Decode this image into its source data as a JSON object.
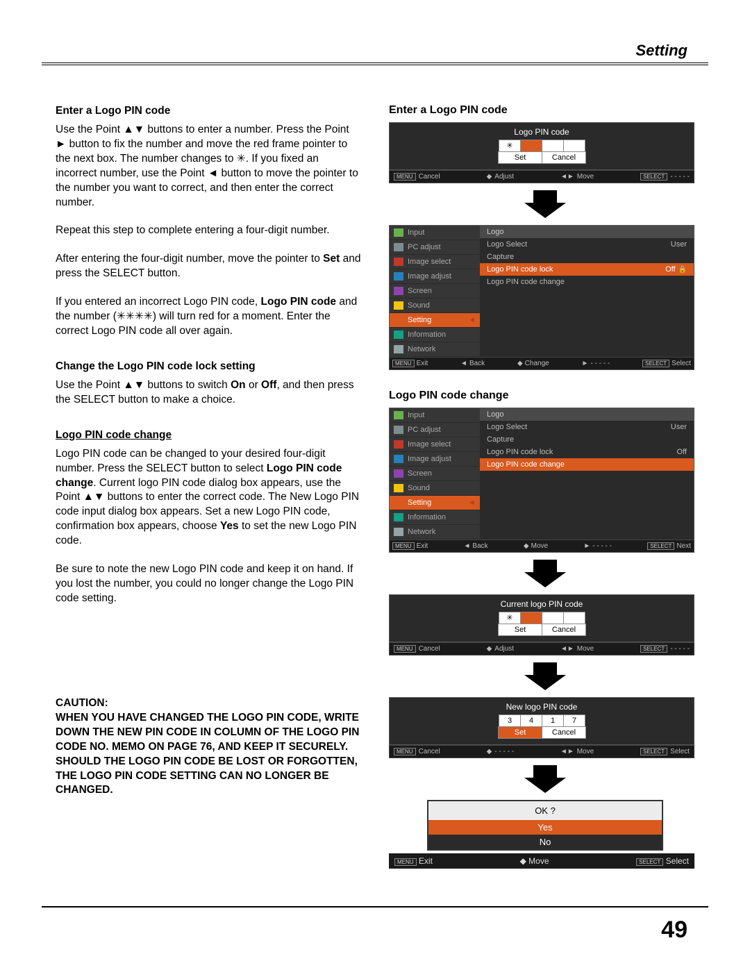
{
  "header": {
    "title": "Setting"
  },
  "page_number": "49",
  "left": {
    "h1": "Enter a Logo PIN code",
    "p1": "Use the Point ▲▼ buttons to enter a number. Press the Point ► button to fix the number and move the red frame pointer to the next box. The number changes to ✳. If you fixed an incorrect number, use the Point ◄ button to move the pointer to the number you want to correct, and then enter the correct number.",
    "p2": "Repeat this step to complete entering a four-digit number.",
    "p3a": "After entering the four-digit number, move the pointer to ",
    "p3b": "Set",
    "p3c": " and press the SELECT button.",
    "p4a": "If you entered an incorrect Logo PIN code, ",
    "p4b": "Logo PIN code",
    "p4c": " and the number (✳✳✳✳) will turn red for a moment. Enter the correct Logo PIN code all over again.",
    "h2": "Change the Logo PIN code lock setting",
    "p5a": "Use the Point ▲▼ buttons to switch ",
    "p5b": "On",
    "p5c": " or ",
    "p5d": "Off",
    "p5e": ", and then press the SELECT button to make a choice.",
    "h3": "Logo PIN code change",
    "p6a": "Logo PIN code can be changed to your desired four-digit number. Press the SELECT button to select ",
    "p6b": "Logo PIN code change",
    "p6c": ". Current logo PIN code dialog box appears, use the Point ▲▼ buttons to enter the correct code. The New Logo PIN code input dialog box appears. Set a new Logo PIN code, confirmation box appears, choose ",
    "p6d": "Yes",
    "p6e": " to set the new Logo PIN code.",
    "p7": "Be sure to note the new Logo PIN code and keep it on hand. If you lost the number, you could no longer change the Logo PIN code setting.",
    "caution_label": "CAUTION:",
    "caution_body": "WHEN YOU HAVE CHANGED THE LOGO PIN CODE, WRITE DOWN THE NEW PIN CODE IN COLUMN OF THE LOGO PIN CODE NO. MEMO ON PAGE 76, AND KEEP IT SECURELY. SHOULD THE LOGO PIN CODE BE LOST OR FORGOTTEN, THE LOGO PIN CODE SETTING CAN NO LONGER BE CHANGED."
  },
  "right": {
    "h1": "Enter a Logo PIN code",
    "h2": "Logo PIN code change",
    "pin1": {
      "title": "Logo PIN code",
      "cells": [
        "✳",
        "",
        "",
        ""
      ],
      "hl_index": 1,
      "set": "Set",
      "cancel": "Cancel",
      "status": {
        "menu": "MENU",
        "cancel": "Cancel",
        "adjust": "Adjust",
        "move": "Move",
        "select": "SELECT",
        "dash": "- - - - -"
      }
    },
    "pin_current": {
      "title": "Current logo PIN code",
      "cells": [
        "✳",
        "",
        "",
        ""
      ],
      "hl_index": 1,
      "set": "Set",
      "cancel": "Cancel",
      "status": {
        "menu": "MENU",
        "cancel": "Cancel",
        "adjust": "Adjust",
        "move": "Move",
        "select": "SELECT",
        "dash": "- - - - -"
      }
    },
    "pin_new": {
      "title": "New logo PIN code",
      "cells": [
        "3",
        "4",
        "1",
        "7"
      ],
      "set": "Set",
      "set_hl": true,
      "cancel": "Cancel",
      "status": {
        "menu": "MENU",
        "cancel": "Cancel",
        "adjust": "- - - - -",
        "move": "Move",
        "select": "SELECT",
        "sel_label": "Select"
      }
    },
    "menu": {
      "side": [
        {
          "label": "Input",
          "color": "#6ab04c"
        },
        {
          "label": "PC adjust",
          "color": "#7f8c8d"
        },
        {
          "label": "Image select",
          "color": "#c0392b"
        },
        {
          "label": "Image adjust",
          "color": "#2980b9"
        },
        {
          "label": "Screen",
          "color": "#8e44ad"
        },
        {
          "label": "Sound",
          "color": "#f1c40f"
        },
        {
          "label": "Setting",
          "color": "#d9591e",
          "active": true
        },
        {
          "label": "Information",
          "color": "#16a085"
        },
        {
          "label": "Network",
          "color": "#95a5a6"
        }
      ],
      "main_header": "Logo",
      "rows1": [
        {
          "label": "Logo Select",
          "val": "User"
        },
        {
          "label": "Capture",
          "val": ""
        },
        {
          "label": "Logo PIN code lock",
          "val": "Off",
          "hl": true,
          "lock": true
        },
        {
          "label": "Logo PIN code change",
          "val": ""
        }
      ],
      "rows2": [
        {
          "label": "Logo Select",
          "val": "User"
        },
        {
          "label": "Capture",
          "val": ""
        },
        {
          "label": "Logo PIN code lock",
          "val": "Off"
        },
        {
          "label": "Logo PIN code change",
          "val": "",
          "hl": true
        }
      ],
      "status1": {
        "menu": "MENU",
        "exit": "Exit",
        "back": "Back",
        "change": "Change",
        "dash": "- - - - -",
        "select": "SELECT",
        "sel": "Select"
      },
      "status2": {
        "menu": "MENU",
        "exit": "Exit",
        "back": "Back",
        "move": "Move",
        "dash": "- - - - -",
        "select": "SELECT",
        "sel": "Next"
      }
    },
    "confirm": {
      "question": "OK ?",
      "yes": "Yes",
      "no": "No",
      "status": {
        "menu": "MENU",
        "exit": "Exit",
        "move": "Move",
        "select": "SELECT",
        "sel": "Select"
      }
    }
  }
}
